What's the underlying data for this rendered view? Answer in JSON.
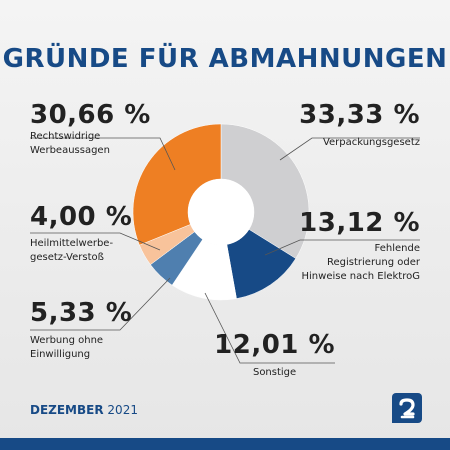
{
  "header": {
    "title": "GRÜNDE FÜR ABMAHNUNGEN"
  },
  "labels": {
    "rechtswidrig": {
      "pct": "30,66 %",
      "desc": "Rechtswidrige\nWerbeaussagen"
    },
    "heilmittel": {
      "pct": "4,00 %",
      "desc": "Heilmittelwerbe-\ngesetz-Verstoß"
    },
    "werbung": {
      "pct": "5,33 %",
      "desc": "Werbung ohne\nEinwilligung"
    },
    "verpackung": {
      "pct": "33,33 %",
      "desc": "Verpackungsgesetz"
    },
    "fehlende": {
      "pct": "13,12 %",
      "desc": "Fehlende\nRegistrierung oder\nHinweise nach ElektroG"
    },
    "sonstige": {
      "pct": "12,01 %",
      "desc": "Sonstige"
    }
  },
  "footer": {
    "month": "DEZEMBER",
    "year": "2021"
  },
  "chart_data": {
    "type": "pie",
    "variant": "donut",
    "title": "GRÜNDE FÜR ABMAHNUNGEN",
    "slices": [
      {
        "name": "Verpackungsgesetz",
        "value": 33.33,
        "color": "#cfcfd1"
      },
      {
        "name": "Fehlende Registrierung oder Hinweise nach ElektroG",
        "value": 13.12,
        "color": "#174a86"
      },
      {
        "name": "Sonstige",
        "value": 12.01,
        "color": "#ffffff"
      },
      {
        "name": "Werbung ohne Einwilligung",
        "value": 5.33,
        "color": "#4f7faf"
      },
      {
        "name": "Heilmittelwerbegesetz-Verstoß",
        "value": 4.0,
        "color": "#f8c39b"
      },
      {
        "name": "Rechtswidrige Werbeaussagen",
        "value": 30.66,
        "color": "#ee7f23"
      }
    ]
  },
  "brand": {
    "primary": "#174a86",
    "accent": "#ee7f23",
    "logo_icon": "brand-logo-icon"
  }
}
